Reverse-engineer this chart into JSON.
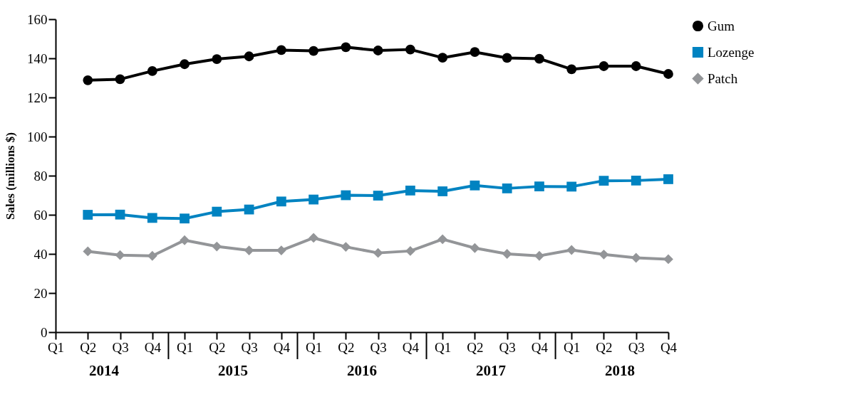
{
  "chart_data": {
    "type": "line",
    "ylabel": "Sales (millions $)",
    "categories": [
      "Q1",
      "Q2",
      "Q3",
      "Q4",
      "Q1",
      "Q2",
      "Q3",
      "Q4",
      "Q1",
      "Q2",
      "Q3",
      "Q4",
      "Q1",
      "Q2",
      "Q3",
      "Q4",
      "Q1",
      "Q2",
      "Q3",
      "Q4"
    ],
    "annotations": [
      "2014",
      "2015",
      "2016",
      "2017",
      "2018"
    ],
    "ylim": [
      0,
      160
    ],
    "yticks": [
      0,
      20,
      40,
      60,
      80,
      100,
      120,
      140,
      160
    ],
    "grid": false,
    "legend": "right",
    "line_style": "solid",
    "series": [
      {
        "name": "Gum",
        "color": "#000000",
        "marker": "circle",
        "values": [
          null,
          128.8,
          129.3,
          133.5,
          137,
          139.6,
          141,
          144.2,
          143.8,
          145.7,
          144,
          144.5,
          140.3,
          143.2,
          140.2,
          139.8,
          134.4,
          136,
          136,
          132
        ]
      },
      {
        "name": "Lozenge",
        "color": "#0083c1",
        "marker": "square",
        "values": [
          null,
          60,
          60.1,
          58.4,
          58.1,
          61.6,
          62.7,
          66.8,
          67.8,
          70,
          69.8,
          72.4,
          72,
          75,
          73.5,
          74.5,
          74.4,
          77.4,
          77.5,
          78.2
        ]
      },
      {
        "name": "Patch",
        "color": "#939598",
        "marker": "diamond",
        "values": [
          null,
          41.3,
          39.4,
          39,
          47,
          43.8,
          41.8,
          41.8,
          48.2,
          43.6,
          40.5,
          41.5,
          47.5,
          43,
          40,
          39,
          42,
          39.7,
          38,
          37.3
        ]
      }
    ]
  }
}
